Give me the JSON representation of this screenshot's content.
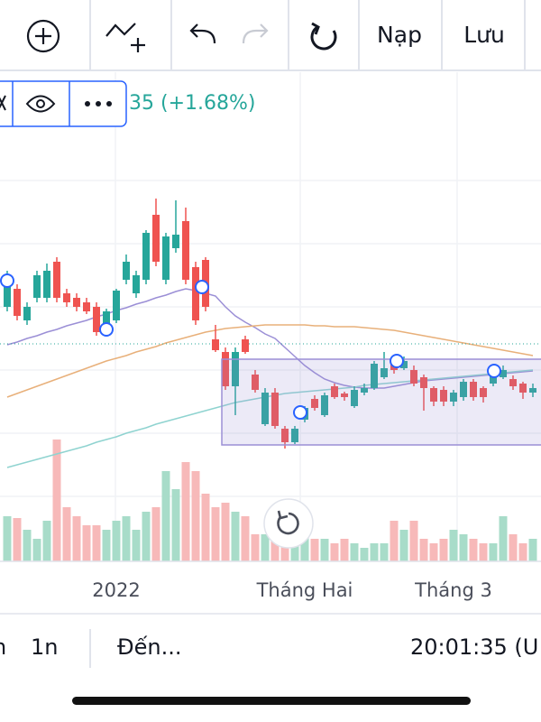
{
  "toolbar": {
    "buttons": [
      "Nạp",
      "Lưu"
    ]
  },
  "legend": {
    "change": "35 (+1.68%)"
  },
  "chart_data": {
    "type": "candlestick",
    "categories": [
      null,
      null,
      null,
      null,
      null,
      null,
      null,
      null,
      null,
      null,
      null,
      "2022",
      null,
      null,
      null,
      null,
      null,
      null,
      null,
      null,
      null,
      null,
      null,
      null,
      null,
      null,
      null,
      null,
      null,
      null,
      "Tháng Hai",
      null,
      null,
      null,
      null,
      null,
      null,
      null,
      null,
      null,
      null,
      null,
      null,
      null,
      null,
      "Tháng 3",
      null,
      null,
      null,
      null,
      null,
      null,
      null,
      null
    ],
    "open": [
      180,
      200,
      165,
      190,
      190,
      230,
      195,
      190,
      185,
      180,
      160,
      165,
      210,
      195,
      210,
      282,
      210,
      245,
      275,
      224,
      232,
      144,
      130,
      92,
      144,
      105,
      50,
      85,
      45,
      30,
      55,
      78,
      60,
      92,
      84,
      70,
      85,
      90,
      102,
      120,
      112,
      110,
      102,
      90,
      88,
      75,
      80,
      97,
      90,
      95,
      102,
      100,
      95,
      85
    ],
    "high": [
      220,
      205,
      185,
      220,
      228,
      235,
      200,
      195,
      190,
      185,
      178,
      200,
      238,
      220,
      265,
      300,
      262,
      298,
      290,
      230,
      235,
      160,
      135,
      135,
      148,
      110,
      90,
      90,
      48,
      48,
      70,
      82,
      85,
      95,
      86,
      92,
      95,
      120,
      130,
      124,
      125,
      115,
      105,
      92,
      92,
      88,
      100,
      100,
      92,
      112,
      115,
      104,
      97,
      95
    ],
    "low": [
      175,
      165,
      160,
      185,
      185,
      185,
      180,
      175,
      172,
      148,
      155,
      162,
      205,
      190,
      205,
      225,
      205,
      240,
      205,
      160,
      175,
      130,
      88,
      60,
      128,
      85,
      48,
      45,
      23,
      28,
      52,
      65,
      58,
      78,
      76,
      68,
      82,
      88,
      100,
      106,
      110,
      92,
      65,
      70,
      70,
      70,
      76,
      76,
      74,
      92,
      100,
      88,
      78,
      80
    ],
    "close": [
      210,
      170,
      180,
      215,
      220,
      190,
      185,
      180,
      175,
      152,
      175,
      198,
      230,
      215,
      262,
      230,
      258,
      260,
      210,
      165,
      180,
      132,
      92,
      130,
      130,
      88,
      85,
      48,
      30,
      45,
      68,
      68,
      82,
      80,
      80,
      88,
      90,
      117,
      112,
      110,
      120,
      95,
      90,
      75,
      75,
      85,
      97,
      80,
      80,
      110,
      110,
      92,
      85,
      90
    ],
    "volume": [
      50,
      48,
      35,
      25,
      45,
      135,
      60,
      50,
      40,
      40,
      35,
      45,
      50,
      35,
      55,
      60,
      100,
      80,
      110,
      100,
      75,
      60,
      65,
      55,
      50,
      30,
      30,
      40,
      45,
      35,
      30,
      25,
      25,
      20,
      25,
      20,
      15,
      20,
      20,
      45,
      35,
      45,
      25,
      20,
      25,
      35,
      30,
      25,
      20,
      20,
      50,
      30,
      20,
      25
    ],
    "ylim": [
      0,
      300
    ],
    "volume_ylim": [
      0,
      150
    ],
    "up_color": "#26a69a",
    "down_color": "#ef5350",
    "up_volume_color": "#a8dcc9",
    "down_volume_color": "#f7b9b9",
    "price_line": 139,
    "series": [
      {
        "color": "#9b8fd6",
        "values": [
          138,
          141,
          145,
          148,
          152,
          155,
          159,
          162,
          165,
          169,
          172,
          176,
          179,
          183,
          186,
          190,
          193,
          197,
          200,
          198,
          195,
          192,
          180,
          170,
          163,
          157,
          150,
          145,
          135,
          125,
          115,
          107,
          100,
          96,
          93,
          91,
          90,
          90,
          90,
          92,
          94,
          96,
          98,
          99,
          100,
          101,
          102,
          103,
          104,
          105,
          106,
          107,
          108,
          109
        ]
      },
      {
        "color": "#e8b07a",
        "values": [
          80,
          84,
          88,
          92,
          96,
          100,
          104,
          108,
          112,
          116,
          120,
          123,
          126,
          130,
          133,
          136,
          140,
          143,
          146,
          149,
          152,
          154,
          156,
          157,
          158,
          159,
          160,
          160,
          160,
          160,
          160,
          159,
          159,
          158,
          158,
          158,
          157,
          156,
          155,
          154,
          152,
          150,
          148,
          146,
          144,
          142,
          140,
          138,
          136,
          134,
          132,
          130,
          128,
          126
        ]
      },
      {
        "color": "#8fd3d0",
        "values": [
          2,
          5,
          8,
          11,
          14,
          17,
          20,
          23,
          26,
          30,
          33,
          36,
          40,
          43,
          46,
          50,
          53,
          56,
          59,
          62,
          65,
          68,
          71,
          74,
          76,
          78,
          80,
          82,
          84,
          85,
          86,
          87,
          88,
          89,
          90,
          91,
          93,
          94,
          95,
          96,
          97,
          98,
          99,
          100,
          101,
          102,
          103,
          104,
          105,
          106,
          107,
          108,
          109,
          110
        ]
      }
    ]
  },
  "bottom_bar": {
    "items": [
      "n",
      "1n",
      "Đến...",
      "20:01:35 (U"
    ]
  }
}
